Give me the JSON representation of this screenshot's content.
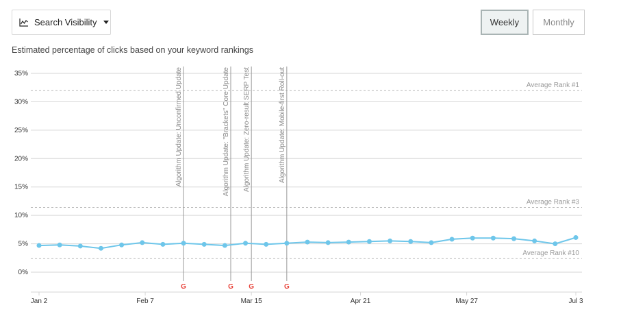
{
  "controls": {
    "metric_dropdown": {
      "label": "Search Visibility",
      "icon": "line-chart-icon"
    },
    "weekly_label": "Weekly",
    "monthly_label": "Monthly",
    "selected": "Weekly"
  },
  "subtitle": "Estimated percentage of clicks based on your keyword rankings",
  "chart_data": {
    "type": "line",
    "y_ticks": [
      "35%",
      "30%",
      "25%",
      "20%",
      "15%",
      "10%",
      "5%",
      "0%"
    ],
    "y_tick_values": [
      35,
      30,
      25,
      20,
      15,
      10,
      5,
      0
    ],
    "ylim": [
      -3.5,
      35
    ],
    "x_range": [
      "2019-01-02",
      "2019-07-03"
    ],
    "x_ticks": [
      {
        "label": "Jan 2",
        "date": "2019-01-02"
      },
      {
        "label": "Feb 7",
        "date": "2019-02-07"
      },
      {
        "label": "Mar 15",
        "date": "2019-03-15"
      },
      {
        "label": "Apr 21",
        "date": "2019-04-21"
      },
      {
        "label": "May 27",
        "date": "2019-05-27"
      },
      {
        "label": "Jul 3",
        "date": "2019-07-03"
      }
    ],
    "grid": true,
    "series": [
      {
        "color": "#6ec6ea",
        "points": [
          {
            "x": "2019-01-02",
            "y": 4.7
          },
          {
            "x": "2019-01-09",
            "y": 4.8
          },
          {
            "x": "2019-01-16",
            "y": 4.6
          },
          {
            "x": "2019-01-23",
            "y": 4.2
          },
          {
            "x": "2019-01-30",
            "y": 4.8
          },
          {
            "x": "2019-02-06",
            "y": 5.2
          },
          {
            "x": "2019-02-13",
            "y": 4.9
          },
          {
            "x": "2019-02-20",
            "y": 5.1
          },
          {
            "x": "2019-02-27",
            "y": 4.9
          },
          {
            "x": "2019-03-06",
            "y": 4.7
          },
          {
            "x": "2019-03-13",
            "y": 5.1
          },
          {
            "x": "2019-03-20",
            "y": 4.9
          },
          {
            "x": "2019-03-27",
            "y": 5.1
          },
          {
            "x": "2019-04-03",
            "y": 5.3
          },
          {
            "x": "2019-04-10",
            "y": 5.2
          },
          {
            "x": "2019-04-17",
            "y": 5.3
          },
          {
            "x": "2019-04-24",
            "y": 5.4
          },
          {
            "x": "2019-05-01",
            "y": 5.5
          },
          {
            "x": "2019-05-08",
            "y": 5.4
          },
          {
            "x": "2019-05-15",
            "y": 5.2
          },
          {
            "x": "2019-05-22",
            "y": 5.8
          },
          {
            "x": "2019-05-29",
            "y": 6.0
          },
          {
            "x": "2019-06-05",
            "y": 6.0
          },
          {
            "x": "2019-06-12",
            "y": 5.9
          },
          {
            "x": "2019-06-19",
            "y": 5.5
          },
          {
            "x": "2019-06-26",
            "y": 5.0
          },
          {
            "x": "2019-07-03",
            "y": 6.1
          }
        ]
      }
    ],
    "reference_lines": [
      {
        "label": "Average Rank #1",
        "y": 32.0
      },
      {
        "label": "Average Rank #3",
        "y": 11.4
      },
      {
        "label": "Average Rank #10",
        "y": 2.4
      }
    ],
    "annotations": [
      {
        "label": "Algorithm Update: Unconfirmed Update",
        "x": "2019-02-20",
        "marker": "G"
      },
      {
        "label": "Algorithm Update: \"Brackets\" Core Update",
        "x": "2019-03-08",
        "marker": "G"
      },
      {
        "label": "Algorithm Update: Zero-result SERP Test",
        "x": "2019-03-15",
        "marker": "G"
      },
      {
        "label": "Algorithm Update: Mobile-first Roll-out",
        "x": "2019-03-27",
        "marker": "G"
      }
    ],
    "colors": {
      "line": "#6ec6ea",
      "grid": "#d6d6d6",
      "reference": "#b5b5b5",
      "annotation": "#999999"
    }
  }
}
